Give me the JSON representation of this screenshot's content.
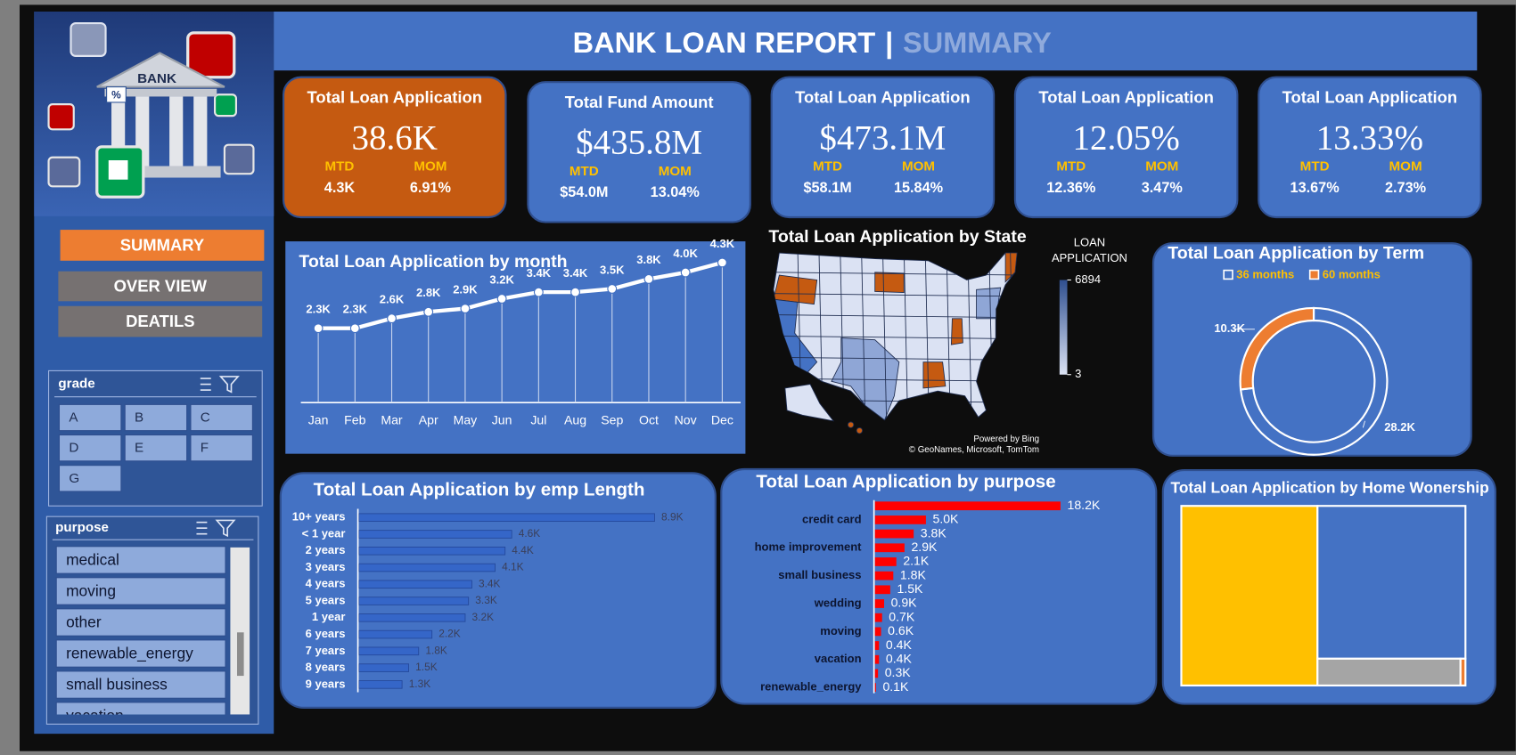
{
  "header": {
    "title": "BANK LOAN REPORT",
    "separator": "|",
    "subtitle": "SUMMARY"
  },
  "logo": {
    "label": "BANK",
    "badge": "%"
  },
  "nav": [
    "SUMMARY",
    "OVER VIEW",
    "DEATILS"
  ],
  "slicers": [
    {
      "title": "grade",
      "items": [
        "A",
        "B",
        "C",
        "D",
        "E",
        "F",
        "G"
      ]
    },
    {
      "title": "purpose",
      "items": [
        "medical",
        "moving",
        "other",
        "renewable_energy",
        "small business",
        "vacation"
      ]
    }
  ],
  "kpis": [
    {
      "title": "Total Loan Application",
      "value": "38.6K",
      "mtd_label": "MTD",
      "mtd": "4.3K",
      "mom_label": "MOM",
      "mom": "6.91%"
    },
    {
      "title": "Total Fund Amount",
      "value": "$435.8M",
      "mtd_label": "MTD",
      "mtd": "$54.0M",
      "mom_label": "MOM",
      "mom": "13.04%"
    },
    {
      "title": "Total Loan Application",
      "value": "$473.1M",
      "mtd_label": "MTD",
      "mtd": "$58.1M",
      "mom_label": "MOM",
      "mom": "15.84%"
    },
    {
      "title": "Total Loan Application",
      "value": "12.05%",
      "mtd_label": "MTD",
      "mtd": "12.36%",
      "mom_label": "MOM",
      "mom": "3.47%"
    },
    {
      "title": "Total Loan Application",
      "value": "13.33%",
      "mtd_label": "MTD",
      "mtd": "13.67%",
      "mom_label": "MOM",
      "mom": "2.73%"
    }
  ],
  "chart_data": [
    {
      "type": "line",
      "title": "Total Loan Application by month",
      "categories": [
        "Jan",
        "Feb",
        "Mar",
        "Apr",
        "May",
        "Jun",
        "Jul",
        "Aug",
        "Sep",
        "Oct",
        "Nov",
        "Dec"
      ],
      "values": [
        2300,
        2300,
        2600,
        2800,
        2900,
        3200,
        3400,
        3400,
        3500,
        3800,
        4000,
        4300
      ],
      "value_labels": [
        "2.3K",
        "2.3K",
        "2.6K",
        "2.8K",
        "2.9K",
        "3.2K",
        "3.4K",
        "3.4K",
        "3.5K",
        "3.8K",
        "4.0K",
        "4.3K"
      ],
      "color": "#ffffff"
    },
    {
      "type": "map",
      "title": "Total Loan Application by State",
      "legend_title": [
        "LOAN",
        "APPLICATION"
      ],
      "colorbar_ticks": [
        6894,
        3
      ],
      "colors": [
        "#2f4f8f",
        "#dbe2f3"
      ],
      "attribution": [
        "Powered by Bing",
        "© GeoNames, Microsoft, TomTom"
      ]
    },
    {
      "type": "donut",
      "title": "Total Loan Application by Term",
      "categories": [
        "36 months",
        "60 months"
      ],
      "values": [
        28200,
        10300
      ],
      "value_labels": [
        "28.2K",
        "10.3K"
      ],
      "colors": [
        "#4472c4",
        "#ed7d31"
      ]
    },
    {
      "type": "bar",
      "title": "Total Loan Application by emp Length",
      "categories": [
        "10+ years",
        "< 1 year",
        "2 years",
        "3 years",
        "4 years",
        "5 years",
        "1 year",
        "6 years",
        "7 years",
        "8 years",
        "9 years"
      ],
      "values": [
        8900,
        4600,
        4400,
        4100,
        3400,
        3300,
        3200,
        2200,
        1800,
        1500,
        1300
      ],
      "value_labels": [
        "8.9K",
        "4.6K",
        "4.4K",
        "4.1K",
        "3.4K",
        "3.3K",
        "3.2K",
        "2.2K",
        "1.8K",
        "1.5K",
        "1.3K"
      ],
      "color": "#3566c8"
    },
    {
      "type": "bar",
      "title": "Total Loan Application by purpose",
      "categories": [
        null,
        "credit card",
        null,
        "home improvement",
        null,
        "small business",
        null,
        "wedding",
        null,
        "moving",
        null,
        "vacation",
        null,
        "renewable_energy"
      ],
      "values": [
        18200,
        5000,
        3800,
        2900,
        2100,
        1800,
        1500,
        900,
        700,
        600,
        400,
        400,
        300,
        100
      ],
      "value_labels": [
        "18.2K",
        "5.0K",
        "3.8K",
        "2.9K",
        "2.1K",
        "1.8K",
        "1.5K",
        "0.9K",
        "0.7K",
        "0.6K",
        "0.4K",
        "0.4K",
        "0.3K",
        "0.1K"
      ],
      "color": "#ff0000"
    },
    {
      "type": "treemap",
      "title": "Total Loan Application by Home Wonership",
      "values": [
        18500,
        17100,
        2900,
        100
      ],
      "colors": [
        "#ffc000",
        "#4472c4",
        "#a5a5a5",
        "#ed7d31"
      ]
    }
  ]
}
